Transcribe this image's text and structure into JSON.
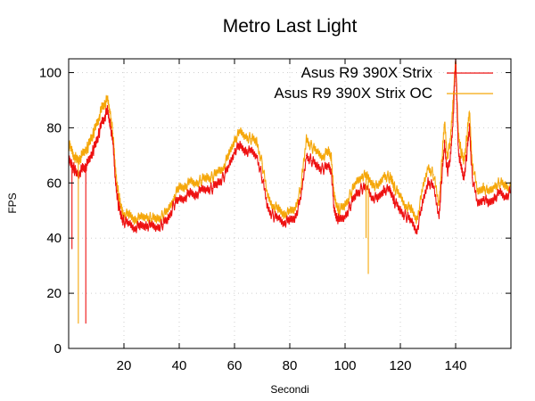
{
  "chart_data": {
    "type": "line",
    "title": "Metro Last Light",
    "xlabel": "Secondi",
    "ylabel": "FPS",
    "xlim": [
      0,
      160
    ],
    "ylim": [
      0,
      105
    ],
    "xticks": [
      20,
      40,
      60,
      80,
      100,
      120,
      140
    ],
    "yticks": [
      0,
      20,
      40,
      60,
      80,
      100
    ],
    "grid": true,
    "legend_position": "top-right",
    "series": [
      {
        "name": "Asus R9 390X Strix",
        "color": "#ee1111",
        "x": [
          0,
          1,
          2,
          3,
          4,
          5,
          6,
          7,
          8,
          9,
          10,
          11,
          12,
          13,
          14,
          15,
          16,
          17,
          18,
          19,
          20,
          22,
          24,
          26,
          28,
          30,
          32,
          34,
          36,
          38,
          40,
          42,
          44,
          46,
          48,
          50,
          52,
          54,
          56,
          58,
          60,
          62,
          64,
          66,
          68,
          70,
          72,
          74,
          76,
          78,
          80,
          82,
          84,
          86,
          88,
          90,
          92,
          94,
          95,
          96,
          97,
          98,
          100,
          102,
          104,
          106,
          108,
          110,
          112,
          114,
          116,
          117,
          118,
          120,
          122,
          124,
          126,
          128,
          130,
          132,
          134,
          135,
          136,
          137,
          138,
          139,
          140,
          141,
          142,
          143,
          144,
          145,
          146,
          148,
          150,
          152,
          154,
          156,
          158,
          160
        ],
        "y": [
          68,
          67,
          65,
          63,
          64,
          65,
          66,
          67,
          70,
          72,
          75,
          78,
          82,
          84,
          86,
          82,
          74,
          60,
          52,
          48,
          46,
          45,
          44,
          44,
          45,
          44,
          44,
          45,
          47,
          52,
          54,
          55,
          56,
          56,
          57,
          58,
          58,
          60,
          62,
          66,
          72,
          73,
          72,
          71,
          70,
          62,
          51,
          48,
          47,
          46,
          46,
          48,
          54,
          70,
          68,
          66,
          65,
          66,
          65,
          50,
          48,
          46,
          48,
          52,
          56,
          58,
          58,
          55,
          54,
          58,
          57,
          56,
          53,
          50,
          48,
          46,
          43,
          52,
          61,
          58,
          48,
          62,
          74,
          64,
          68,
          82,
          104,
          72,
          65,
          62,
          70,
          80,
          62,
          52,
          55,
          52,
          55,
          56,
          55,
          57
        ]
      },
      {
        "name": "Asus R9 390X Strix OC",
        "color": "#f5a70a",
        "x": [
          0,
          1,
          2,
          3,
          4,
          5,
          6,
          7,
          8,
          9,
          10,
          11,
          12,
          13,
          14,
          15,
          16,
          17,
          18,
          19,
          20,
          22,
          24,
          26,
          28,
          30,
          32,
          34,
          36,
          38,
          40,
          42,
          44,
          46,
          48,
          50,
          52,
          54,
          56,
          58,
          60,
          62,
          64,
          66,
          68,
          70,
          72,
          74,
          76,
          78,
          80,
          82,
          84,
          86,
          88,
          90,
          92,
          94,
          95,
          96,
          97,
          98,
          100,
          102,
          104,
          106,
          108,
          110,
          112,
          114,
          116,
          117,
          118,
          120,
          122,
          124,
          126,
          128,
          130,
          132,
          134,
          135,
          136,
          137,
          138,
          139,
          140,
          141,
          142,
          143,
          144,
          145,
          146,
          148,
          150,
          152,
          154,
          156,
          158,
          160
        ],
        "y": [
          74,
          72,
          70,
          68,
          69,
          70,
          72,
          73,
          76,
          78,
          81,
          84,
          87,
          89,
          90,
          86,
          78,
          64,
          56,
          51,
          49,
          48,
          47,
          47,
          48,
          47,
          47,
          48,
          50,
          55,
          58,
          59,
          60,
          60,
          61,
          62,
          62,
          64,
          66,
          70,
          76,
          78,
          77,
          76,
          75,
          67,
          55,
          52,
          50,
          49,
          49,
          51,
          58,
          76,
          73,
          71,
          70,
          71,
          70,
          55,
          52,
          50,
          52,
          56,
          60,
          63,
          62,
          60,
          58,
          63,
          62,
          61,
          58,
          55,
          52,
          50,
          47,
          57,
          66,
          63,
          52,
          68,
          82,
          70,
          74,
          89,
          104,
          78,
          71,
          68,
          76,
          86,
          68,
          56,
          59,
          56,
          59,
          60,
          59,
          58
        ]
      }
    ],
    "spikes": [
      {
        "series": "Asus R9 390X Strix",
        "x": 1.2,
        "y": 36
      },
      {
        "series": "Asus R9 390X Strix OC",
        "x": 3.5,
        "y": 9
      },
      {
        "series": "Asus R9 390X Strix",
        "x": 6.2,
        "y": 9
      },
      {
        "series": "Asus R9 390X Strix OC",
        "x": 107.6,
        "y": 40
      },
      {
        "series": "Asus R9 390X Strix OC",
        "x": 108.4,
        "y": 27
      }
    ]
  }
}
